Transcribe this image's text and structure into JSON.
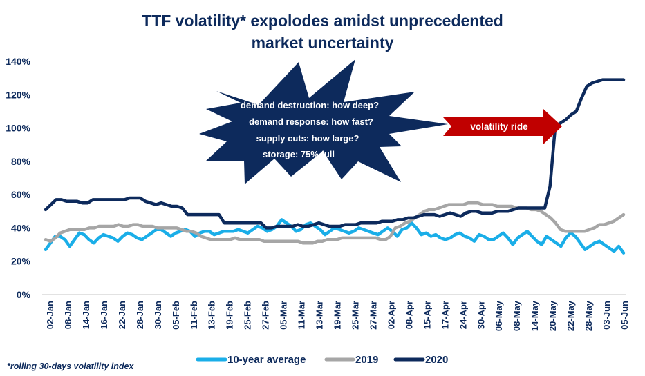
{
  "chart_data": {
    "type": "line",
    "title": "TTF volatility* expolodes amidst unprecedented market uncertainty",
    "title_lines": [
      "TTF volatility* expolodes amidst unprecedented",
      "market uncertainty"
    ],
    "xlabel": "",
    "ylabel": "",
    "ylim": [
      0,
      140
    ],
    "yticks": [
      0,
      20,
      40,
      60,
      80,
      100,
      120,
      140
    ],
    "ytick_labels": [
      "0%",
      "20%",
      "40%",
      "60%",
      "80%",
      "100%",
      "120%",
      "140%"
    ],
    "x_tick_labels": [
      "02-Jan",
      "08-Jan",
      "14-Jan",
      "16-Jan",
      "22-Jan",
      "28-Jan",
      "30-Jan",
      "05-Feb",
      "11-Feb",
      "13-Feb",
      "19-Feb",
      "25-Feb",
      "27-Feb",
      "05-Mar",
      "11-Mar",
      "13-Mar",
      "19-Mar",
      "25-Mar",
      "27-Mar",
      "02-Apr",
      "08-Apr",
      "15-Apr",
      "17-Apr",
      "24-Apr",
      "30-Apr",
      "06-May",
      "08-May",
      "14-May",
      "20-May",
      "22-May",
      "28-May",
      "03-Jun",
      "05-Jun"
    ],
    "grid": false,
    "legend": "bottom",
    "series": [
      {
        "name": "10-year average",
        "color": "#1aaee8",
        "values": [
          27,
          31,
          35,
          35,
          33,
          29,
          33,
          37,
          36,
          33,
          31,
          34,
          36,
          35,
          34,
          32,
          35,
          37,
          36,
          34,
          33,
          35,
          37,
          39,
          39,
          37,
          35,
          37,
          38,
          39,
          38,
          35,
          37,
          38,
          38,
          36,
          37,
          38,
          38,
          38,
          39,
          38,
          37,
          39,
          41,
          40,
          38,
          39,
          41,
          45,
          43,
          41,
          38,
          39,
          42,
          43,
          41,
          39,
          36,
          38,
          40,
          39,
          38,
          37,
          38,
          40,
          39,
          38,
          37,
          36,
          38,
          40,
          38,
          35,
          39,
          40,
          43,
          40,
          36,
          37,
          35,
          36,
          34,
          33,
          34,
          36,
          37,
          35,
          34,
          32,
          36,
          35,
          33,
          33,
          35,
          37,
          34,
          30,
          34,
          36,
          38,
          35,
          32,
          30,
          35,
          33,
          31,
          29,
          34,
          37,
          35,
          31,
          27,
          29,
          31,
          32,
          30,
          28,
          26,
          29,
          25
        ]
      },
      {
        "name": "2019",
        "color": "#a6a6a6",
        "values": [
          33,
          32,
          34,
          37,
          38,
          39,
          39,
          39,
          39,
          40,
          40,
          41,
          41,
          41,
          41,
          42,
          41,
          41,
          42,
          42,
          41,
          41,
          41,
          40,
          40,
          40,
          40,
          40,
          39,
          38,
          38,
          37,
          35,
          34,
          33,
          33,
          33,
          33,
          33,
          34,
          33,
          33,
          33,
          33,
          33,
          32,
          32,
          32,
          32,
          32,
          32,
          32,
          32,
          31,
          31,
          31,
          32,
          32,
          33,
          33,
          33,
          34,
          34,
          34,
          34,
          34,
          34,
          34,
          34,
          33,
          33,
          35,
          40,
          41,
          43,
          44,
          46,
          48,
          50,
          51,
          51,
          52,
          53,
          54,
          54,
          54,
          54,
          55,
          55,
          55,
          54,
          54,
          54,
          53,
          53,
          53,
          53,
          52,
          52,
          52,
          51,
          51,
          50,
          48,
          46,
          43,
          39,
          38,
          38,
          38,
          38,
          38,
          39,
          40,
          42,
          42,
          43,
          44,
          46,
          48
        ]
      },
      {
        "name": "2020",
        "color": "#0d2a5c",
        "values": [
          51,
          54,
          57,
          57,
          56,
          56,
          56,
          55,
          55,
          57,
          57,
          57,
          57,
          57,
          57,
          57,
          58,
          58,
          58,
          56,
          55,
          54,
          55,
          54,
          53,
          53,
          52,
          48,
          48,
          48,
          48,
          48,
          48,
          48,
          43,
          43,
          43,
          43,
          43,
          43,
          43,
          43,
          40,
          40,
          41,
          41,
          41,
          41,
          42,
          41,
          41,
          42,
          43,
          42,
          41,
          41,
          41,
          42,
          42,
          42,
          43,
          43,
          43,
          43,
          44,
          44,
          44,
          45,
          45,
          46,
          46,
          47,
          48,
          48,
          48,
          47,
          48,
          49,
          48,
          47,
          49,
          50,
          50,
          49,
          49,
          49,
          50,
          50,
          50,
          51,
          52,
          52,
          52,
          52,
          52,
          52,
          65,
          101,
          103,
          105,
          108,
          110,
          118,
          125,
          127,
          128,
          129,
          129,
          129,
          129,
          129
        ]
      }
    ]
  },
  "annotations": {
    "starburst_lines": [
      "demand destruction: how deep?",
      "demand response: how fast?",
      "supply cuts: how large?",
      "storage: 75% full"
    ],
    "arrow_label": "volatility ride",
    "starburst_color": "#0d2a5c",
    "arrow_color": "#c00000"
  },
  "legend": {
    "items": [
      {
        "label": "10-year average",
        "color": "#1aaee8"
      },
      {
        "label": "2019",
        "color": "#a6a6a6"
      },
      {
        "label": "2020",
        "color": "#0d2a5c"
      }
    ]
  },
  "footnote": "*rolling 30-days volatility index"
}
